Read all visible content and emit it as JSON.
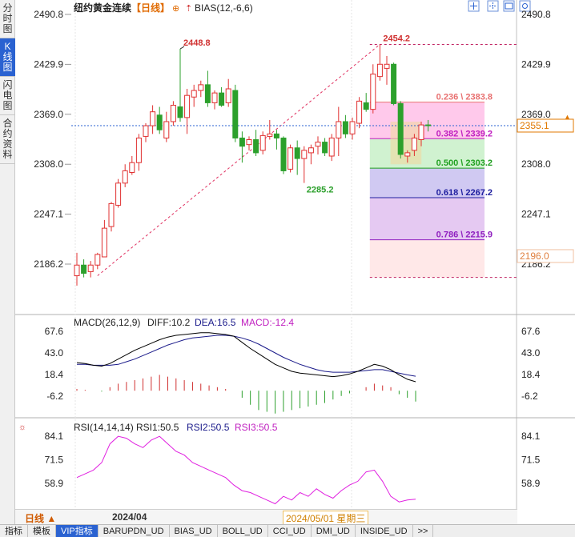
{
  "sidebar": {
    "tabs": [
      {
        "label": "分时图",
        "active": false
      },
      {
        "label": "K线图",
        "active": true
      },
      {
        "label": "闪电图",
        "active": false
      },
      {
        "label": "合约资料",
        "active": false
      }
    ]
  },
  "header": {
    "instrument": "纽约黄金连续",
    "timeframe_tag": "【日线】",
    "indicator": "BIAS(12,-6,6)"
  },
  "toolbar_icons": [
    "crosshair-icon",
    "grid-icon",
    "expand-icon",
    "gear-icon"
  ],
  "colors": {
    "up": "#e03030",
    "down": "#2ca02c",
    "grid": "#d8d8d8",
    "accent": "#2a62d1",
    "current_price": "#e07800"
  },
  "price_axis": {
    "ticks": [
      "2490.8",
      "2429.9",
      "2369.0",
      "2308.0",
      "2247.1",
      "2186.2"
    ],
    "current_price": "2355.1",
    "marker_price": "2196.0"
  },
  "annotations": {
    "high_left": "2448.8",
    "high_right": "2454.2",
    "low": "2285.2"
  },
  "fib_levels": [
    {
      "label": "0.236 \\ 2383.8",
      "value": 2383.8,
      "color": "#e87070"
    },
    {
      "label": "0.382 \\ 2339.2",
      "value": 2339.2,
      "color": "#c020c0"
    },
    {
      "label": "0.500 \\ 2303.2",
      "value": 2303.2,
      "color": "#20a020"
    },
    {
      "label": "0.618 \\ 2267.2",
      "value": 2267.2,
      "color": "#2020a0"
    },
    {
      "label": "0.786 \\ 2215.9",
      "value": 2215.9,
      "color": "#9020c0"
    }
  ],
  "macd": {
    "title": "MACD(26,12,9)",
    "diff": "DIFF:10.2",
    "dea": "DEA:16.5",
    "macd": "MACD:-12.4",
    "ticks": [
      "67.6",
      "43.0",
      "18.4",
      "-6.2"
    ]
  },
  "rsi": {
    "title": "RSI(14,14,14)",
    "rsi1": "RSI1:50.5",
    "rsi2": "RSI2:50.5",
    "rsi3": "RSI3:50.5",
    "ticks": [
      "84.1",
      "71.5",
      "58.9"
    ]
  },
  "time_axis": {
    "timeframe": "日线",
    "month_label": "2024/04",
    "cursor_date": "2024/05/01 星期三"
  },
  "bottom_tabs": [
    {
      "label": "指标",
      "active": false
    },
    {
      "label": "模板",
      "active": false
    },
    {
      "label": "VIP指标",
      "active": true
    },
    {
      "label": "BARUPDN_UD",
      "active": false
    },
    {
      "label": "BIAS_UD",
      "active": false
    },
    {
      "label": "BOLL_UD",
      "active": false
    },
    {
      "label": "CCI_UD",
      "active": false
    },
    {
      "label": "DMI_UD",
      "active": false
    },
    {
      "label": "INSIDE_UD",
      "active": false
    },
    {
      "label": ">>",
      "active": false
    }
  ],
  "chart_data": {
    "type": "candlestick",
    "candles": [
      {
        "o": 2172,
        "h": 2200,
        "l": 2160,
        "c": 2185
      },
      {
        "o": 2185,
        "h": 2192,
        "l": 2170,
        "c": 2175
      },
      {
        "o": 2177,
        "h": 2190,
        "l": 2170,
        "c": 2185
      },
      {
        "o": 2185,
        "h": 2200,
        "l": 2180,
        "c": 2198
      },
      {
        "o": 2195,
        "h": 2240,
        "l": 2195,
        "c": 2230
      },
      {
        "o": 2232,
        "h": 2262,
        "l": 2226,
        "c": 2260
      },
      {
        "o": 2258,
        "h": 2290,
        "l": 2255,
        "c": 2285
      },
      {
        "o": 2285,
        "h": 2308,
        "l": 2280,
        "c": 2300
      },
      {
        "o": 2298,
        "h": 2318,
        "l": 2295,
        "c": 2310
      },
      {
        "o": 2310,
        "h": 2345,
        "l": 2300,
        "c": 2340
      },
      {
        "o": 2342,
        "h": 2358,
        "l": 2335,
        "c": 2355
      },
      {
        "o": 2355,
        "h": 2380,
        "l": 2345,
        "c": 2372
      },
      {
        "o": 2368,
        "h": 2378,
        "l": 2345,
        "c": 2350
      },
      {
        "o": 2340,
        "h": 2372,
        "l": 2335,
        "c": 2360
      },
      {
        "o": 2360,
        "h": 2385,
        "l": 2355,
        "c": 2380
      },
      {
        "o": 2378,
        "h": 2448.8,
        "l": 2360,
        "c": 2365
      },
      {
        "o": 2365,
        "h": 2400,
        "l": 2345,
        "c": 2392
      },
      {
        "o": 2390,
        "h": 2405,
        "l": 2378,
        "c": 2398
      },
      {
        "o": 2398,
        "h": 2410,
        "l": 2390,
        "c": 2405
      },
      {
        "o": 2405,
        "h": 2422,
        "l": 2378,
        "c": 2383
      },
      {
        "o": 2383,
        "h": 2398,
        "l": 2375,
        "c": 2395
      },
      {
        "o": 2395,
        "h": 2402,
        "l": 2378,
        "c": 2380
      },
      {
        "o": 2383,
        "h": 2412,
        "l": 2378,
        "c": 2400
      },
      {
        "o": 2398,
        "h": 2405,
        "l": 2335,
        "c": 2340
      },
      {
        "o": 2340,
        "h": 2348,
        "l": 2310,
        "c": 2330
      },
      {
        "o": 2332,
        "h": 2342,
        "l": 2325,
        "c": 2338
      },
      {
        "o": 2338,
        "h": 2350,
        "l": 2318,
        "c": 2322
      },
      {
        "o": 2325,
        "h": 2348,
        "l": 2320,
        "c": 2343
      },
      {
        "o": 2342,
        "h": 2362,
        "l": 2338,
        "c": 2345
      },
      {
        "o": 2345,
        "h": 2350,
        "l": 2326,
        "c": 2340
      },
      {
        "o": 2340,
        "h": 2342,
        "l": 2296,
        "c": 2300
      },
      {
        "o": 2302,
        "h": 2332,
        "l": 2298,
        "c": 2328
      },
      {
        "o": 2328,
        "h": 2337,
        "l": 2295,
        "c": 2315
      },
      {
        "o": 2315,
        "h": 2330,
        "l": 2285.2,
        "c": 2325
      },
      {
        "o": 2322,
        "h": 2332,
        "l": 2308,
        "c": 2328
      },
      {
        "o": 2330,
        "h": 2342,
        "l": 2320,
        "c": 2335
      },
      {
        "o": 2335,
        "h": 2340,
        "l": 2318,
        "c": 2322
      },
      {
        "o": 2318,
        "h": 2345,
        "l": 2312,
        "c": 2340
      },
      {
        "o": 2340,
        "h": 2378,
        "l": 2318,
        "c": 2360
      },
      {
        "o": 2360,
        "h": 2368,
        "l": 2340,
        "c": 2345
      },
      {
        "o": 2345,
        "h": 2365,
        "l": 2338,
        "c": 2360
      },
      {
        "o": 2358,
        "h": 2390,
        "l": 2352,
        "c": 2385
      },
      {
        "o": 2383,
        "h": 2395,
        "l": 2372,
        "c": 2375
      },
      {
        "o": 2375,
        "h": 2430,
        "l": 2370,
        "c": 2418
      },
      {
        "o": 2415,
        "h": 2454.2,
        "l": 2410,
        "c": 2430
      },
      {
        "o": 2425,
        "h": 2440,
        "l": 2405,
        "c": 2430
      },
      {
        "o": 2430,
        "h": 2432,
        "l": 2380,
        "c": 2382
      },
      {
        "o": 2382,
        "h": 2385,
        "l": 2315,
        "c": 2320
      },
      {
        "o": 2318,
        "h": 2325,
        "l": 2310,
        "c": 2322
      },
      {
        "o": 2325,
        "h": 2345,
        "l": 2318,
        "c": 2340
      },
      {
        "o": 2338,
        "h": 2360,
        "l": 2330,
        "c": 2356
      },
      {
        "o": 2356,
        "h": 2362,
        "l": 2348,
        "c": 2355.1
      }
    ],
    "macd_diff": [
      32,
      31,
      29,
      28,
      31,
      36,
      41,
      46,
      50,
      54,
      58,
      61,
      63,
      64,
      65,
      66,
      66,
      65,
      64,
      62,
      55,
      48,
      42,
      36,
      30,
      26,
      22,
      20,
      19,
      18,
      17,
      16,
      17,
      19,
      22,
      26,
      30,
      28,
      24,
      18,
      13,
      10.2
    ],
    "macd_dea": [
      30,
      30,
      29,
      29,
      29,
      30,
      33,
      36,
      40,
      44,
      48,
      52,
      55,
      58,
      60,
      61,
      62,
      63,
      63,
      62,
      60,
      57,
      53,
      48,
      43,
      38,
      34,
      30,
      27,
      24,
      22,
      21,
      21,
      21,
      22,
      23,
      24,
      24,
      22,
      20,
      18,
      16.5
    ],
    "macd_hist": [
      2,
      1,
      0,
      -1,
      4,
      8,
      10,
      12,
      14,
      16,
      18,
      16,
      14,
      12,
      10,
      8,
      6,
      4,
      2,
      0,
      -8,
      -16,
      -22,
      -24,
      -26,
      -24,
      -22,
      -20,
      -18,
      -16,
      -14,
      -10,
      -6,
      -3,
      0,
      4,
      8,
      6,
      4,
      -4,
      -8,
      -12.4
    ],
    "rsi": [
      62,
      64,
      66,
      70,
      80,
      84,
      83,
      80,
      78,
      82,
      84,
      80,
      76,
      74,
      70,
      68,
      66,
      64,
      62,
      58,
      55,
      54,
      52,
      50,
      48,
      52,
      50,
      54,
      52,
      56,
      53,
      51,
      55,
      58,
      60,
      65,
      66,
      60,
      52,
      49,
      50,
      50.5
    ]
  }
}
